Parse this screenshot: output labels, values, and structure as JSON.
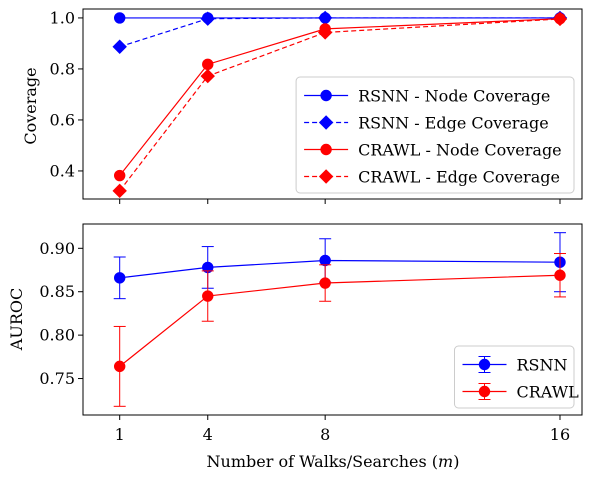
{
  "chart_data": [
    {
      "type": "line",
      "ylabel": "Coverage",
      "ylim": [
        0.29,
        1.035
      ],
      "yticks": [
        0.4,
        0.6,
        0.8,
        1.0
      ],
      "ytick_labels": [
        "0.4",
        "0.6",
        "0.8",
        "1.0"
      ],
      "x": [
        1,
        4,
        8,
        16
      ],
      "legend_position": "lower-right",
      "grid": false,
      "series": [
        {
          "name": "RSNN - Node Coverage",
          "values": [
            1.0,
            1.0,
            1.0,
            1.0
          ],
          "color": "#0000ff",
          "linestyle": "solid",
          "marker": "circle"
        },
        {
          "name": "RSNN - Edge Coverage",
          "values": [
            0.887,
            0.997,
            1.0,
            1.0
          ],
          "color": "#0000ff",
          "linestyle": "dashed",
          "marker": "diamond"
        },
        {
          "name": "CRAWL - Node Coverage",
          "values": [
            0.382,
            0.818,
            0.957,
            0.997
          ],
          "color": "#ff0000",
          "linestyle": "solid",
          "marker": "circle"
        },
        {
          "name": "CRAWL - Edge Coverage",
          "values": [
            0.322,
            0.772,
            0.943,
            0.996
          ],
          "color": "#ff0000",
          "linestyle": "dashed",
          "marker": "diamond"
        }
      ]
    },
    {
      "type": "line",
      "ylabel": "AUROC",
      "xlabel_prefix": "Number of Walks/Searches (",
      "xlabel_var": "m",
      "xlabel_suffix": ")",
      "ylim": [
        0.708,
        0.928
      ],
      "yticks": [
        0.75,
        0.8,
        0.85,
        0.9
      ],
      "ytick_labels": [
        "0.75",
        "0.80",
        "0.85",
        "0.90"
      ],
      "x": [
        1,
        4,
        8,
        16
      ],
      "xtick_labels": [
        "1",
        "4",
        "8",
        "16"
      ],
      "legend_position": "lower-right",
      "grid": false,
      "series": [
        {
          "name": "RSNN",
          "values": [
            0.866,
            0.878,
            0.886,
            0.884
          ],
          "errors": [
            0.024,
            0.024,
            0.025,
            0.034
          ],
          "color": "#0000ff",
          "linestyle": "solid",
          "marker": "circle"
        },
        {
          "name": "CRAWL",
          "values": [
            0.764,
            0.845,
            0.86,
            0.869
          ],
          "errors": [
            0.046,
            0.029,
            0.021,
            0.025
          ],
          "color": "#ff0000",
          "linestyle": "solid",
          "marker": "circle"
        }
      ]
    }
  ]
}
